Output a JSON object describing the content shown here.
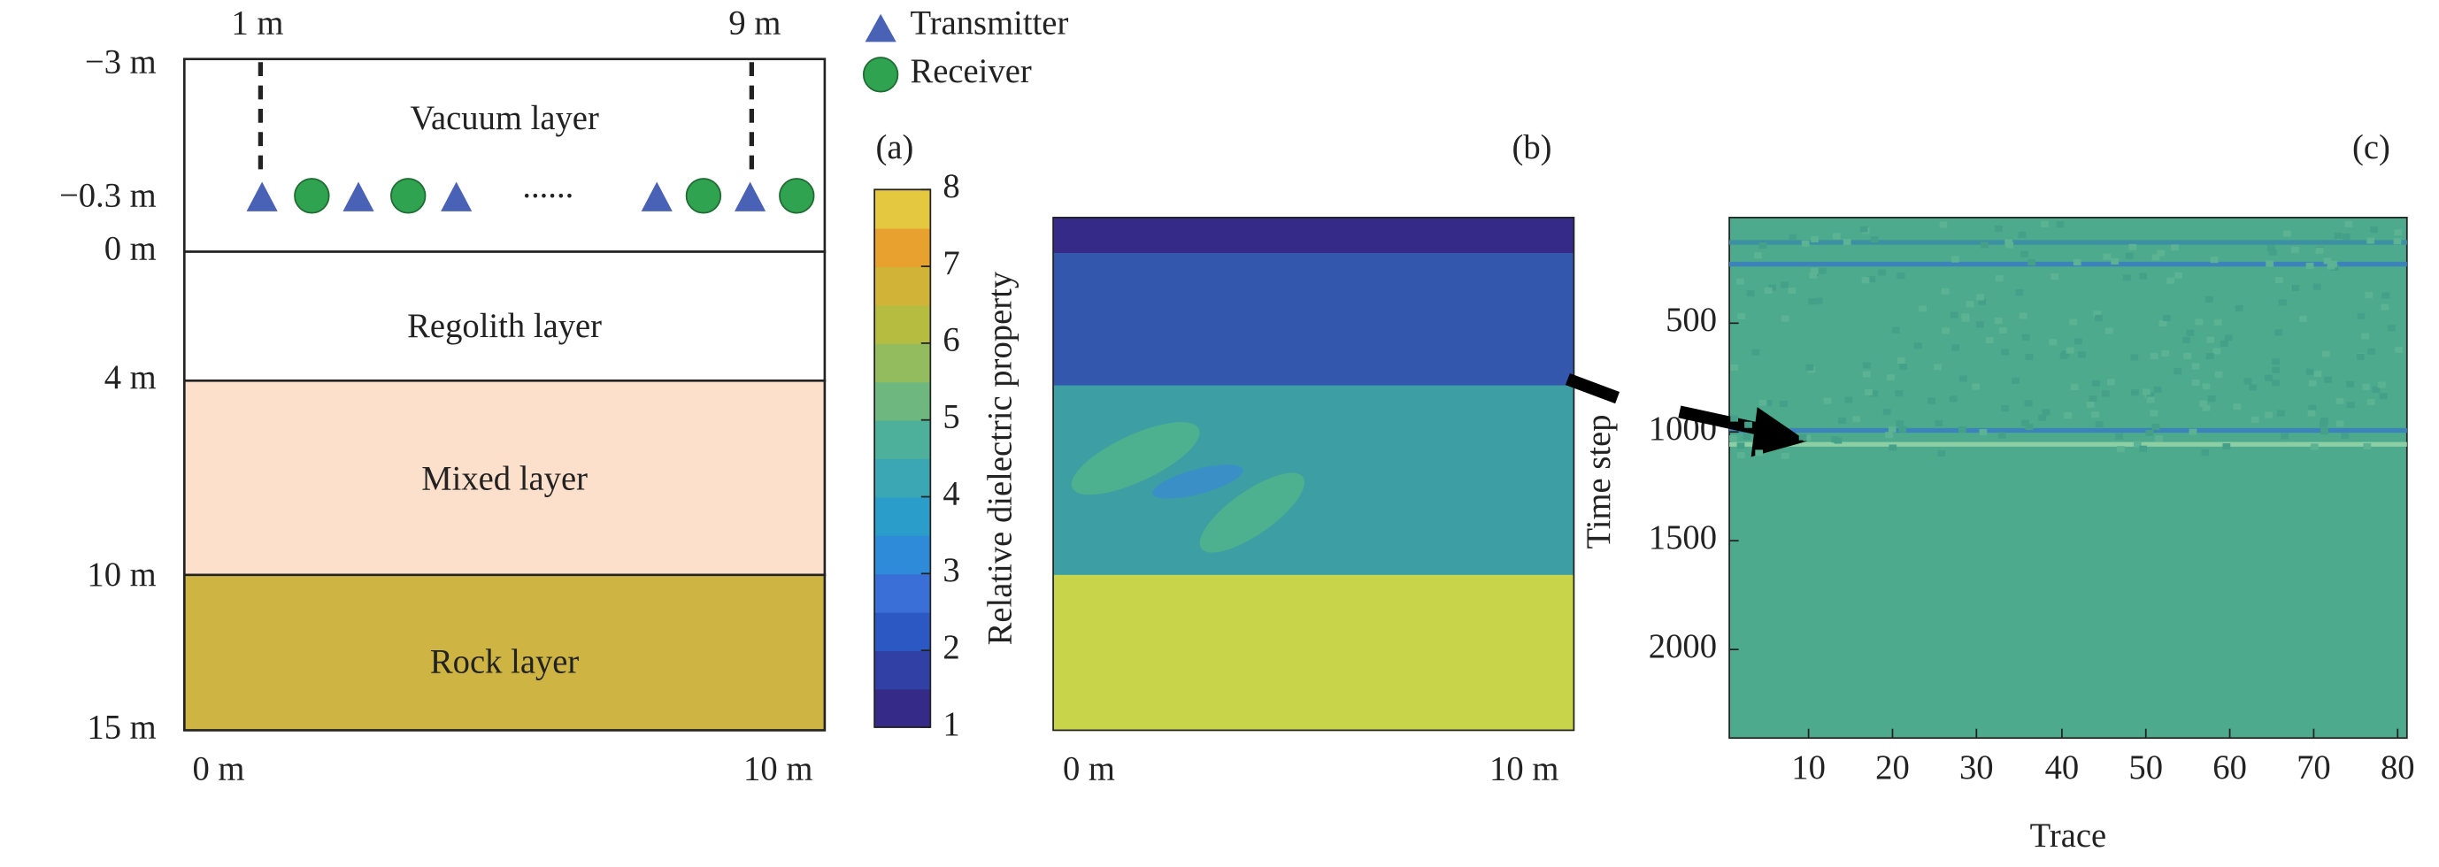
{
  "panel_a": {
    "tag": "(a)",
    "top_labels": [
      "1 m",
      "9 m"
    ],
    "legend": [
      "Transmitter",
      "Receiver"
    ],
    "dots": "......",
    "depth_labels": [
      "−3 m",
      "−0.3 m",
      "0 m",
      "4 m",
      "10 m",
      "15 m"
    ],
    "layers": [
      "Vacuum layer",
      "Regolith layer",
      "Mixed layer",
      "Rock layer"
    ],
    "x_labels": [
      "0 m",
      "10 m"
    ],
    "colorbar": {
      "label": "Relative dielectric property",
      "ticks": [
        "8",
        "7",
        "6",
        "5",
        "4",
        "3",
        "2",
        "1"
      ]
    }
  },
  "panel_b": {
    "tag": "(b)",
    "x_labels": [
      "0 m",
      "10 m"
    ]
  },
  "panel_c": {
    "tag": "(c)",
    "y_label": "Time step",
    "x_label": "Trace",
    "y_ticks": [
      "500",
      "1000",
      "1500",
      "2000"
    ],
    "x_ticks": [
      "10",
      "20",
      "30",
      "40",
      "50",
      "60",
      "70",
      "80"
    ]
  }
}
